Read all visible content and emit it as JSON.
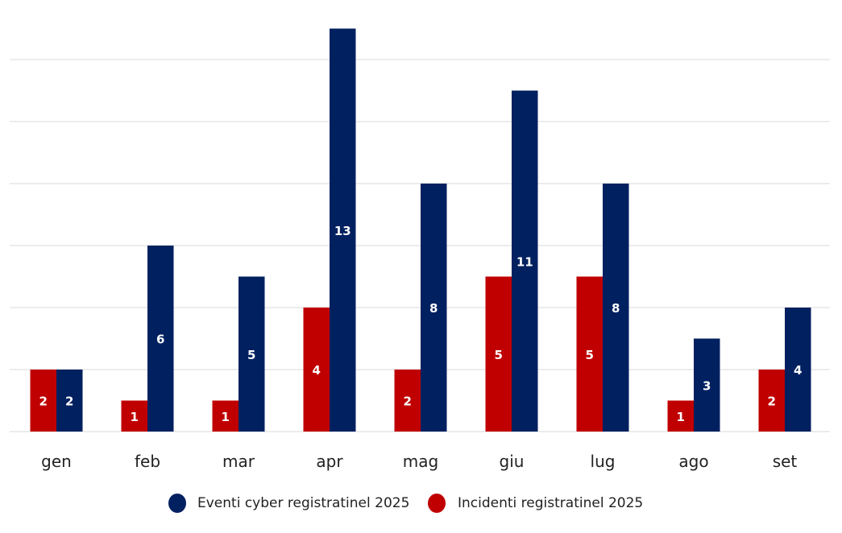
{
  "chart_data": {
    "type": "bar",
    "title": "",
    "xlabel": "",
    "ylabel": "",
    "ylim": [
      0,
      14
    ],
    "grid": true,
    "legend_placement": "bottom",
    "categories": [
      "gen",
      "feb",
      "mar",
      "apr",
      "mag",
      "giu",
      "lug",
      "ago",
      "set"
    ],
    "series": [
      {
        "name": "Incidenti registratinel 2025",
        "color": "#C00000",
        "values": [
          2,
          1,
          1,
          4,
          2,
          5,
          5,
          1,
          2
        ]
      },
      {
        "name": "Eventi cyber registratinel 2025",
        "color": "#002060",
        "values": [
          2,
          6,
          5,
          13,
          8,
          11,
          8,
          3,
          4
        ]
      }
    ],
    "legend_order": [
      1,
      0
    ]
  }
}
